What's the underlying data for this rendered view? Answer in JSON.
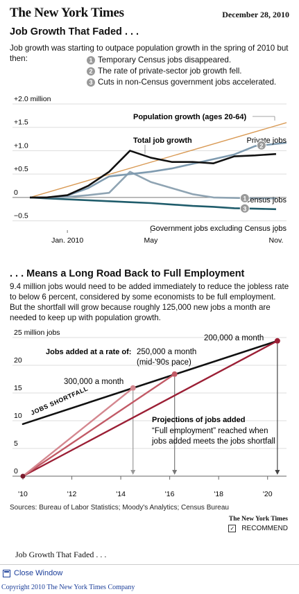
{
  "header": {
    "masthead": "The New York Times",
    "date": "December 28, 2010"
  },
  "chart1": {
    "title": "Job Growth That Faded . . .",
    "intro": "Job growth was starting to outpace population growth in the spring of 2010 but then:",
    "notes": [
      {
        "num": "1",
        "text": "Temporary Census jobs disappeared."
      },
      {
        "num": "2",
        "text": "The rate of private-sector job growth fell."
      },
      {
        "num": "3",
        "text": "Cuts in non-Census government jobs accelerated."
      }
    ]
  },
  "chart2": {
    "title": ". . . Means a Long Road Back to Full Employment",
    "intro": "9.4 million jobs would need to be added immediately to reduce the jobless rate to below 6 percent, considered by some economists to be full employment. But the shortfall will grow because roughly 125,000 new jobs a month are needed to keep up with population growth."
  },
  "chart_data": [
    {
      "type": "line",
      "title": "Job Growth That Faded . . .",
      "ylabel": "+2.0 million",
      "y_ticks": [
        {
          "value": 2.0,
          "label": "+2.0 million"
        },
        {
          "value": 1.5,
          "label": "+1.5"
        },
        {
          "value": 1.0,
          "label": "+1.0"
        },
        {
          "value": 0.5,
          "label": "+0.5"
        },
        {
          "value": 0,
          "label": "0"
        },
        {
          "value": -0.5,
          "label": "−0.5"
        }
      ],
      "x_ticks": [
        {
          "month": 1,
          "label": "Jan. 2010"
        },
        {
          "month": 5,
          "label": "May"
        },
        {
          "month": 11,
          "label": "Nov."
        }
      ],
      "xlim": [
        -0.8,
        11.5
      ],
      "ylim": [
        -0.55,
        2.0
      ],
      "series": [
        {
          "name": "Population growth (ages 20-64)",
          "color": "#d99a55",
          "x": [
            -0.8,
            11.5
          ],
          "y": [
            0,
            1.6
          ]
        },
        {
          "name": "Total job growth",
          "color": "#111111",
          "x": [
            -0.8,
            0,
            1,
            2,
            3,
            4,
            5,
            6,
            7,
            8,
            9,
            10,
            11
          ],
          "y": [
            0,
            0,
            0.05,
            0.25,
            0.55,
            1.0,
            0.85,
            0.76,
            0.76,
            0.73,
            0.88,
            0.9,
            0.93
          ]
        },
        {
          "name": "Private jobs",
          "color": "#7f9bb0",
          "x": [
            -0.8,
            0,
            1,
            2,
            3,
            4,
            5,
            6,
            7,
            8,
            9,
            10,
            11.5
          ],
          "y": [
            0,
            0,
            0.04,
            0.2,
            0.45,
            0.5,
            0.55,
            0.62,
            0.72,
            0.82,
            0.92,
            1.1,
            1.17
          ]
        },
        {
          "name": "Census jobs",
          "color": "#8fa4b3",
          "x": [
            -0.8,
            0,
            1,
            2,
            3,
            4,
            5,
            6,
            7,
            8,
            9,
            10,
            11
          ],
          "y": [
            0,
            0,
            0.01,
            0.05,
            0.1,
            0.55,
            0.33,
            0.2,
            0.07,
            0.0,
            -0.01,
            -0.02,
            -0.02
          ]
        },
        {
          "name": "Government jobs excluding Census jobs",
          "color": "#1f5c6b",
          "x": [
            -0.8,
            0,
            1,
            2,
            3,
            4,
            5,
            6,
            7,
            8,
            9,
            10,
            11
          ],
          "y": [
            0,
            -0.02,
            -0.04,
            -0.06,
            -0.08,
            -0.1,
            -0.12,
            -0.15,
            -0.18,
            -0.2,
            -0.23,
            -0.24,
            -0.25
          ]
        }
      ],
      "annotations": [
        {
          "label": "1",
          "series": "Census jobs",
          "x": 9.5
        },
        {
          "label": "2",
          "series": "Private jobs",
          "x": 10.3
        },
        {
          "label": "3",
          "series": "Government jobs excluding Census jobs",
          "x": 9.5
        }
      ]
    },
    {
      "type": "line",
      "title": ". . . Means a Long Road Back to Full Employment",
      "ylabel": "25 million jobs",
      "y_ticks": [
        {
          "value": 25,
          "label": "25 million jobs"
        },
        {
          "value": 20,
          "label": "20"
        },
        {
          "value": 15,
          "label": "15"
        },
        {
          "value": 10,
          "label": "10"
        },
        {
          "value": 5,
          "label": "5"
        },
        {
          "value": 0,
          "label": "0"
        }
      ],
      "x_ticks": [
        {
          "value": 2010,
          "label": "'10"
        },
        {
          "value": 2012,
          "label": "'12"
        },
        {
          "value": 2014,
          "label": "'14"
        },
        {
          "value": 2016,
          "label": "'16"
        },
        {
          "value": 2018,
          "label": "'18"
        },
        {
          "value": 2020,
          "label": "'20"
        }
      ],
      "xlim": [
        2010,
        2021
      ],
      "ylim": [
        0,
        25
      ],
      "series": [
        {
          "name": "JOBS SHORTFALL",
          "color": "#111111",
          "x": [
            2010,
            2020.4
          ],
          "y": [
            9.4,
            24.4
          ]
        },
        {
          "name": "300,000 a month",
          "color": "#d4878f",
          "x": [
            2010,
            2014.5
          ],
          "y": [
            0,
            15.9
          ]
        },
        {
          "name": "250,000 a month (mid-'90s pace)",
          "color": "#c25a66",
          "x": [
            2010,
            2016.2
          ],
          "y": [
            0,
            18.4
          ]
        },
        {
          "name": "200,000 a month",
          "color": "#9b1f35",
          "x": [
            2010,
            2020.4
          ],
          "y": [
            0,
            24.4
          ]
        }
      ],
      "labels": {
        "rate_heading": "Jobs added at a rate of:",
        "r250": "250,000 a month",
        "r250_note": "(mid-'90s pace)",
        "r300": "300,000 a month",
        "r200": "200,000 a month",
        "proj_heading": "Projections of jobs added",
        "full_emp_1": "“Full employment” reached when",
        "full_emp_2": "jobs added meets the jobs shortfall"
      }
    }
  ],
  "footer": {
    "sources": "Sources: Bureau of Labor Statistics; Moody's Analytics; Census Bureau",
    "nyt_small": "The New York Times",
    "recommend": "RECOMMEND",
    "caption": "Job Growth That Faded . . .",
    "close": "Close Window",
    "copyright": "Copyright 2010 The New York Times Company"
  }
}
